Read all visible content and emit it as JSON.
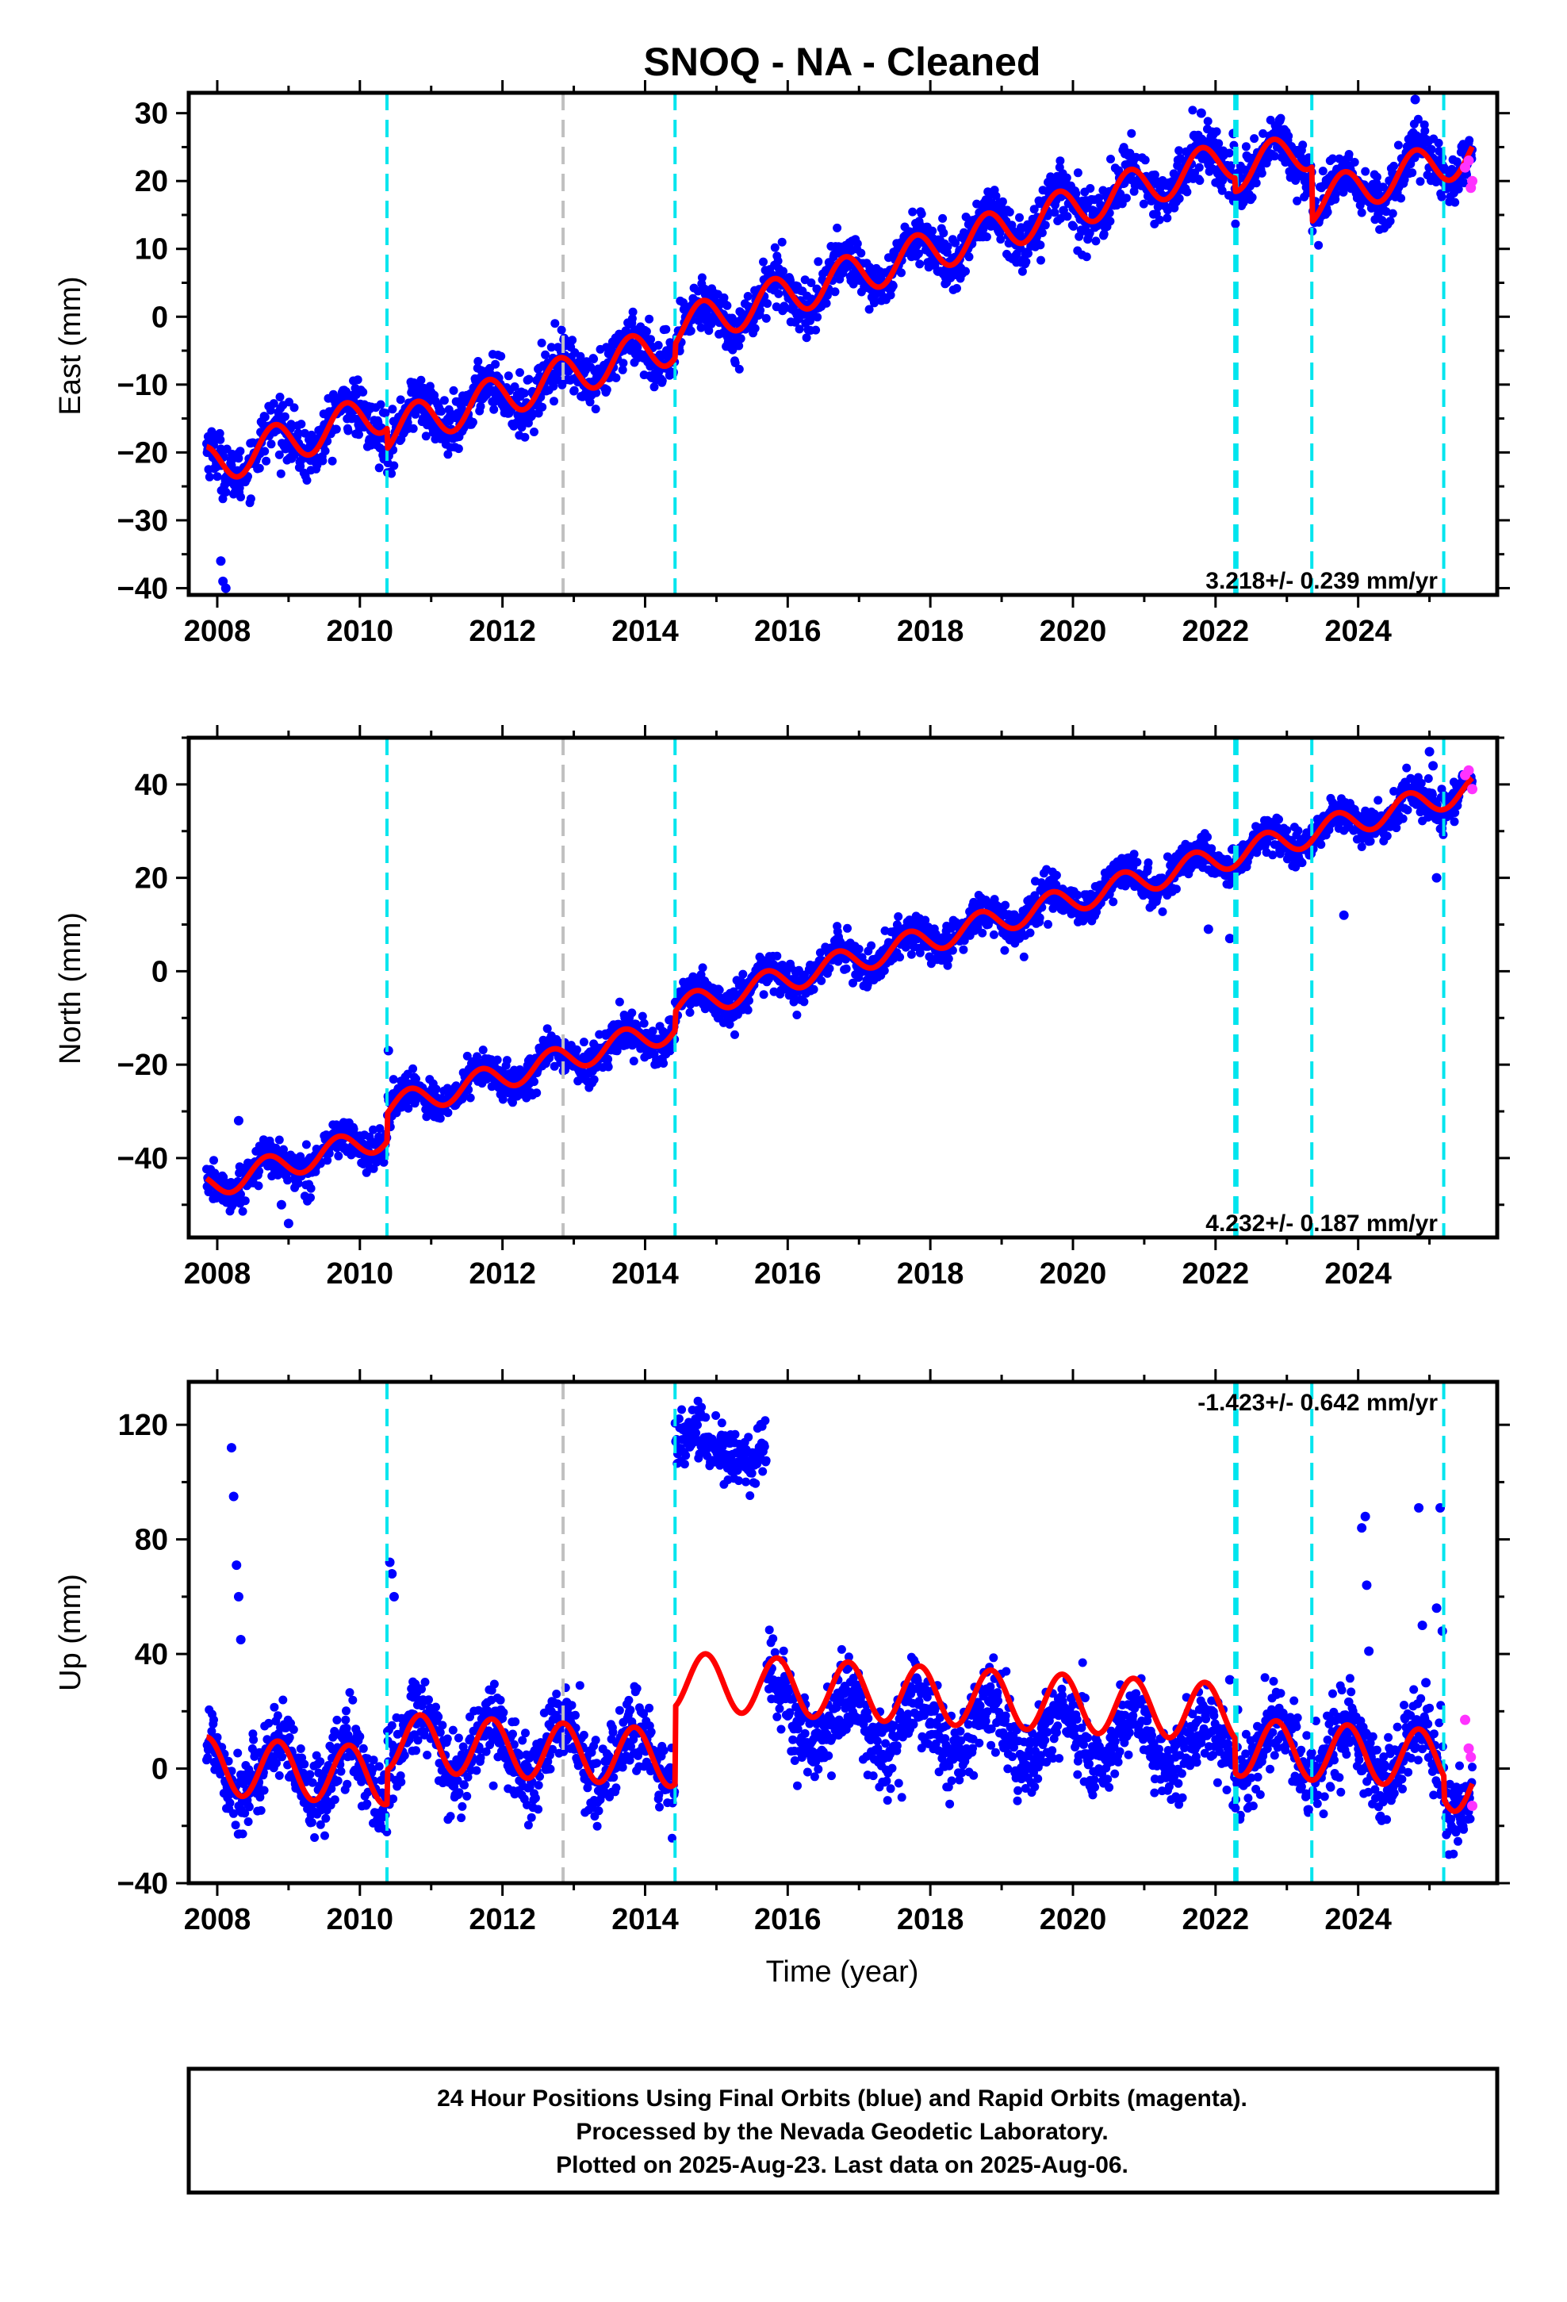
{
  "title": "SNOQ  - NA - Cleaned",
  "x_axis_label": "Time (year)",
  "footer": [
    "24 Hour Positions Using Final Orbits (blue) and Rapid Orbits (magenta).",
    "Processed by the Nevada Geodetic Laboratory.",
    "Plotted on 2025-Aug-23. Last data on 2025-Aug-06."
  ],
  "colors": {
    "final_orbits": "#0000ff",
    "rapid_orbits": "#ff33ff",
    "model_fit": "#ff0000",
    "event_line": "#00e5ee",
    "equipment_line": "#c0c0c0",
    "frame": "#000000"
  },
  "chart_data": [
    {
      "type": "scatter",
      "panel": "east",
      "ylabel": "East (mm)",
      "rate_label": "3.218+/- 0.239 mm/yr",
      "xlim": [
        2007.6,
        2025.95
      ],
      "ylim": [
        -41,
        33
      ],
      "xticks": [
        2008,
        2010,
        2012,
        2014,
        2016,
        2018,
        2020,
        2022,
        2024
      ],
      "yticks": [
        -40,
        -30,
        -20,
        -10,
        0,
        10,
        20,
        30
      ],
      "grid": false,
      "model": {
        "start": 2007.85,
        "end": 2025.6,
        "value_at_start": -22,
        "rate": 3.218,
        "annual_amplitude": 3.0,
        "phase": 0.55,
        "offsets": [
          {
            "year": 2010.38,
            "step": -3.0
          },
          {
            "year": 2014.42,
            "step": 2.0
          },
          {
            "year": 2022.27,
            "step": -2.0
          },
          {
            "year": 2023.35,
            "step": -8.0
          }
        ]
      },
      "scatter_sigma": 2.0,
      "outliers": [
        [
          2008.05,
          -36
        ],
        [
          2008.08,
          -39
        ],
        [
          2008.12,
          -40
        ],
        [
          2013.9,
          -6
        ],
        [
          2014.7,
          1
        ],
        [
          2021.8,
          30
        ],
        [
          2022.25,
          27
        ],
        [
          2022.9,
          29
        ],
        [
          2024.8,
          32
        ]
      ],
      "rapid": [
        [
          2025.5,
          22
        ],
        [
          2025.55,
          23
        ],
        [
          2025.58,
          19
        ],
        [
          2025.6,
          20
        ]
      ],
      "events": [
        2010.38,
        2014.42,
        2022.27,
        2022.3,
        2023.35,
        2025.2
      ],
      "equipment_events": [
        2012.85
      ]
    },
    {
      "type": "scatter",
      "panel": "north",
      "ylabel": "North (mm)",
      "rate_label": "4.232+/- 0.187 mm/yr",
      "xlim": [
        2007.6,
        2025.95
      ],
      "ylim": [
        -57,
        50
      ],
      "xticks": [
        2008,
        2010,
        2012,
        2014,
        2016,
        2018,
        2020,
        2022,
        2024
      ],
      "yticks": [
        -40,
        -20,
        0,
        20,
        40
      ],
      "grid": false,
      "model": {
        "start": 2007.85,
        "end": 2025.6,
        "value_at_start": -46,
        "rate": 4.232,
        "annual_amplitude": 2.8,
        "phase": 0.45,
        "offsets": [
          {
            "year": 2010.38,
            "step": 6.0
          },
          {
            "year": 2014.42,
            "step": 4.0
          }
        ]
      },
      "scatter_sigma": 2.0,
      "outliers": [
        [
          2008.3,
          -32
        ],
        [
          2008.9,
          -50
        ],
        [
          2009.0,
          -54
        ],
        [
          2010.4,
          -17
        ],
        [
          2021.9,
          9
        ],
        [
          2022.2,
          7
        ],
        [
          2023.8,
          12
        ],
        [
          2025.0,
          47
        ],
        [
          2025.05,
          44
        ],
        [
          2025.1,
          20
        ]
      ],
      "rapid": [
        [
          2025.5,
          42
        ],
        [
          2025.55,
          43
        ],
        [
          2025.6,
          39
        ]
      ],
      "events": [
        2010.38,
        2014.42,
        2022.27,
        2022.3,
        2023.35,
        2025.2
      ],
      "equipment_events": [
        2012.85
      ]
    },
    {
      "type": "scatter",
      "panel": "up",
      "ylabel": "Up (mm)",
      "rate_label": "-1.423+/- 0.642 mm/yr",
      "xlim": [
        2007.6,
        2025.95
      ],
      "ylim": [
        -40,
        135
      ],
      "xticks": [
        2008,
        2010,
        2012,
        2014,
        2016,
        2018,
        2020,
        2022,
        2024
      ],
      "yticks": [
        -40,
        0,
        40,
        80,
        120
      ],
      "grid": false,
      "model": {
        "start": 2007.85,
        "end": 2025.6,
        "value_at_start": 1,
        "rate": -1.423,
        "annual_amplitude": 10.0,
        "phase": 0.6,
        "offsets": [
          {
            "year": 2010.38,
            "step": 12.0
          },
          {
            "year": 2014.42,
            "step": 27.0
          },
          {
            "year": 2022.27,
            "step": -12.0
          },
          {
            "year": 2025.2,
            "step": -8.0
          }
        ]
      },
      "scatter_sigma": 7.0,
      "scatter_offset_segment": {
        "start": 2015.8,
        "end": 2022.27,
        "shift": -12.0
      },
      "outliers": [
        [
          2008.2,
          112
        ],
        [
          2008.23,
          95
        ],
        [
          2008.27,
          71
        ],
        [
          2008.3,
          60
        ],
        [
          2008.33,
          45
        ],
        [
          2010.42,
          72
        ],
        [
          2010.45,
          68
        ],
        [
          2010.48,
          60
        ],
        [
          2022.2,
          31
        ],
        [
          2024.05,
          84
        ],
        [
          2024.1,
          88
        ],
        [
          2024.12,
          64
        ],
        [
          2024.15,
          41
        ],
        [
          2024.85,
          91
        ],
        [
          2024.9,
          50
        ],
        [
          2024.95,
          30
        ],
        [
          2025.1,
          56
        ],
        [
          2025.15,
          91
        ],
        [
          2025.18,
          48
        ]
      ],
      "cluster": {
        "start": 2014.42,
        "end": 2015.7,
        "center": 112,
        "spread": 10
      },
      "rapid": [
        [
          2025.5,
          17
        ],
        [
          2025.55,
          7
        ],
        [
          2025.58,
          4
        ],
        [
          2025.6,
          -13
        ]
      ],
      "events": [
        2010.38,
        2014.42,
        2022.27,
        2022.3,
        2023.35,
        2025.2
      ],
      "equipment_events": [
        2012.85
      ]
    }
  ]
}
